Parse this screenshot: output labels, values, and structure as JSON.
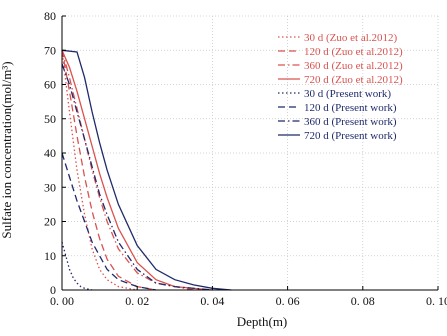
{
  "chart_data": {
    "type": "line",
    "title": "",
    "xlabel": "Depth(m)",
    "ylabel": "Sulfate ion concentration(mol/m³)",
    "xlim": [
      0,
      0.1
    ],
    "ylim": [
      0,
      80
    ],
    "xticks": [
      "0. 00",
      "0. 02",
      "0. 04",
      "0. 06",
      "0. 08",
      "0. 10"
    ],
    "yticks": [
      "0",
      "10",
      "20",
      "30",
      "40",
      "50",
      "60",
      "70",
      "80"
    ],
    "grid": true,
    "legend_position": "top-right",
    "series": [
      {
        "name": "30 d (Zuo et al.2012)",
        "color": "#d9534f",
        "dash": "dotted",
        "x": [
          0,
          0.002,
          0.004,
          0.006,
          0.008,
          0.01,
          0.012,
          0.015,
          0.02
        ],
        "y": [
          70,
          52,
          35,
          22,
          12,
          6,
          3,
          1,
          0
        ]
      },
      {
        "name": "120 d (Zuo et al.2012)",
        "color": "#d9534f",
        "dash": "dashed",
        "x": [
          0,
          0.002,
          0.004,
          0.006,
          0.008,
          0.01,
          0.012,
          0.015,
          0.02,
          0.025
        ],
        "y": [
          70,
          58,
          45,
          33,
          23,
          15,
          9,
          4,
          1,
          0
        ]
      },
      {
        "name": "360 d (Zuo et al.2012)",
        "color": "#d9534f",
        "dash": "dashdot",
        "x": [
          0,
          0.002,
          0.004,
          0.006,
          0.008,
          0.01,
          0.012,
          0.015,
          0.02,
          0.025,
          0.03,
          0.035
        ],
        "y": [
          70,
          62,
          53,
          44,
          35,
          27,
          20,
          12,
          5,
          2,
          1,
          0
        ]
      },
      {
        "name": "720 d (Zuo et al.2012)",
        "color": "#d9534f",
        "dash": "solid",
        "x": [
          0,
          0.002,
          0.004,
          0.006,
          0.008,
          0.01,
          0.012,
          0.015,
          0.02,
          0.025,
          0.03,
          0.04
        ],
        "y": [
          70,
          65,
          58,
          50,
          42,
          34,
          27,
          18,
          8,
          3,
          1,
          0
        ]
      },
      {
        "name": "30 d (Present work)",
        "color": "#1f2a6b",
        "dash": "dotted",
        "x": [
          0,
          0.001,
          0.002,
          0.003,
          0.004,
          0.005,
          0.006,
          0.008
        ],
        "y": [
          14,
          10,
          6,
          3.5,
          2,
          1,
          0.5,
          0
        ]
      },
      {
        "name": "120 d (Present work)",
        "color": "#1f2a6b",
        "dash": "dashed",
        "x": [
          0,
          0.002,
          0.004,
          0.006,
          0.008,
          0.01,
          0.012,
          0.015,
          0.02,
          0.025
        ],
        "y": [
          40,
          33,
          26,
          20,
          14,
          10,
          6,
          3,
          1,
          0
        ]
      },
      {
        "name": "360 d (Present work)",
        "color": "#1f2a6b",
        "dash": "dashdot",
        "x": [
          0,
          0.002,
          0.004,
          0.006,
          0.008,
          0.01,
          0.012,
          0.015,
          0.02,
          0.025,
          0.03,
          0.04
        ],
        "y": [
          66,
          60,
          52,
          44,
          36,
          28,
          22,
          14,
          6,
          2,
          1,
          0
        ]
      },
      {
        "name": "720 d (Present work)",
        "color": "#1f2a6b",
        "dash": "solid",
        "x": [
          0,
          0.004,
          0.006,
          0.008,
          0.01,
          0.012,
          0.015,
          0.02,
          0.025,
          0.03,
          0.035,
          0.04,
          0.045
        ],
        "y": [
          70,
          69.5,
          62,
          52,
          43,
          35,
          25,
          13,
          6,
          3,
          1.5,
          0.5,
          0
        ]
      }
    ]
  }
}
